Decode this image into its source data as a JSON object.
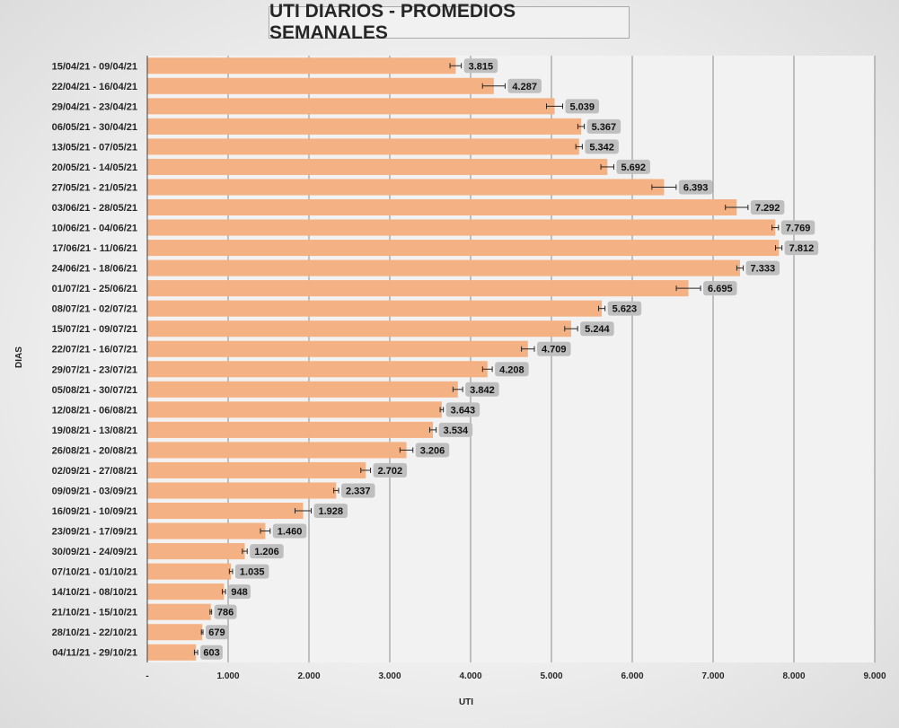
{
  "chart_data": {
    "type": "bar",
    "orientation": "horizontal",
    "title": "UTI DIARIOS - PROMEDIOS SEMANALES",
    "xlabel": "UTI",
    "ylabel": "DIAS",
    "xlim": [
      0,
      9000
    ],
    "x_ticks": [
      "-",
      "1.000",
      "2.000",
      "3.000",
      "4.000",
      "5.000",
      "6.000",
      "7.000",
      "8.000",
      "9.000"
    ],
    "grid": "vertical",
    "legend": "none",
    "bar_color": "#f4b183",
    "data_label_bg": "#bfbfbf",
    "categories": [
      "15/04/21 - 09/04/21",
      "22/04/21 - 16/04/21",
      "29/04/21 - 23/04/21",
      "06/05/21 - 30/04/21",
      "13/05/21 - 07/05/21",
      "20/05/21 - 14/05/21",
      "27/05/21 - 21/05/21",
      "03/06/21 - 28/05/21",
      "10/06/21 - 04/06/21",
      "17/06/21 - 11/06/21",
      "24/06/21 - 18/06/21",
      "01/07/21 - 25/06/21",
      "08/07/21 - 02/07/21",
      "15/07/21 - 09/07/21",
      "22/07/21 - 16/07/21",
      "29/07/21 - 23/07/21",
      "05/08/21 - 30/07/21",
      "12/08/21 - 06/08/21",
      "19/08/21 - 13/08/21",
      "26/08/21 - 20/08/21",
      "02/09/21 - 27/08/21",
      "09/09/21 - 03/09/21",
      "16/09/21 - 10/09/21",
      "23/09/21 - 17/09/21",
      "30/09/21 - 24/09/21",
      "07/10/21 - 01/10/21",
      "14/10/21 - 08/10/21",
      "21/10/21 - 15/10/21",
      "28/10/21 - 22/10/21",
      "04/11/21 - 29/10/21"
    ],
    "values": [
      3815,
      4287,
      5039,
      5367,
      5342,
      5692,
      6393,
      7292,
      7769,
      7812,
      7333,
      6695,
      5623,
      5244,
      4709,
      4208,
      3842,
      3643,
      3534,
      3206,
      2702,
      2337,
      1928,
      1460,
      1206,
      1035,
      948,
      786,
      679,
      603
    ],
    "value_labels": [
      "3.815",
      "4.287",
      "5.039",
      "5.367",
      "5.342",
      "5.692",
      "6.393",
      "7.292",
      "7.769",
      "7.812",
      "7.333",
      "6.695",
      "5.623",
      "5.244",
      "4.709",
      "4.208",
      "3.842",
      "3.643",
      "3.534",
      "3.206",
      "2.702",
      "2.337",
      "1.928",
      "1.460",
      "1.206",
      "1.035",
      "948",
      "786",
      "679",
      "603"
    ],
    "error": [
      70,
      140,
      100,
      40,
      40,
      80,
      150,
      140,
      40,
      40,
      40,
      150,
      40,
      80,
      80,
      60,
      60,
      20,
      40,
      80,
      60,
      30,
      100,
      60,
      30,
      20,
      20,
      10,
      10,
      20
    ]
  }
}
